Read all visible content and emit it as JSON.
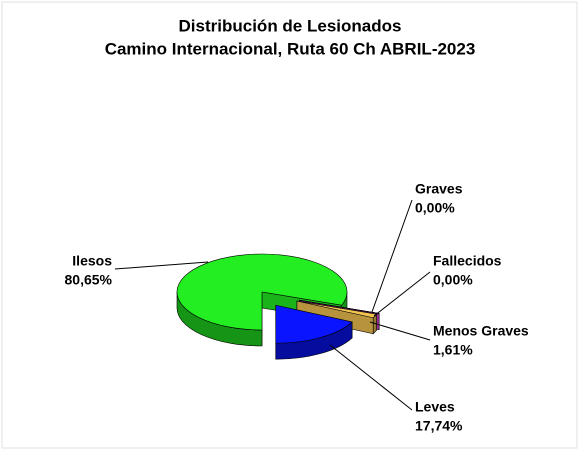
{
  "chart_data": {
    "type": "pie3d",
    "title": "Distribución de Lesionados",
    "subtitle": "Camino Internacional, Ruta 60 Ch ABRIL-2023",
    "categories": [
      "Ilesos",
      "Graves",
      "Fallecidos",
      "Menos Graves",
      "Leves"
    ],
    "values": [
      80.65,
      0,
      0,
      1.61,
      17.74
    ],
    "value_labels": [
      "80,65%",
      "0,00%",
      "0,00%",
      "1,61%",
      "17,74%"
    ],
    "colors": [
      "#22ee22",
      "#ff3333",
      "#cc33cc",
      "#f2c450",
      "#0a14ff"
    ]
  }
}
